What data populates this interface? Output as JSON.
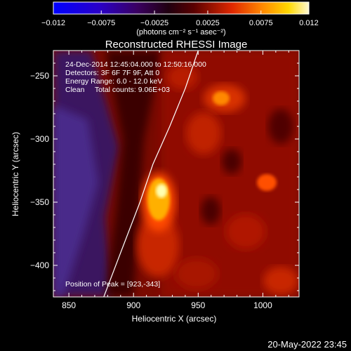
{
  "chart_data": {
    "type": "heatmap",
    "title": "Reconstructed RHESSI Image",
    "xlabel": "Heliocentric X (arcsec)",
    "ylabel": "Heliocentric Y (arcsec)",
    "xlim": [
      838,
      1028
    ],
    "ylim": [
      -425,
      -230
    ],
    "x_ticks": [
      850,
      900,
      950,
      1000
    ],
    "y_ticks": [
      -250,
      -300,
      -350,
      -400
    ],
    "colorbar": {
      "range": [
        -0.012,
        0.012
      ],
      "ticks": [
        "-0.012",
        "-0.0075",
        "-0.0025",
        "0.0025",
        "0.0075",
        "0.012"
      ],
      "label": "(photons cm⁻² s⁻¹ asec⁻²)"
    },
    "annotations": [
      "24-Dec-2014 12:45:04.000 to 12:50:16.000",
      "Detectors: 3F 6F 7F 9F, Att 0",
      "Energy Range: 6.0 - 12.0 keV",
      "Clean     Total counts: 9.06E+03"
    ],
    "peak_label": "Position of Peak = [923,-343]",
    "peak": {
      "x": 923,
      "y": -343
    },
    "limb_curve": [
      [
        877,
        -425
      ],
      [
        890,
        -390
      ],
      [
        905,
        -350
      ],
      [
        915,
        -320
      ],
      [
        928,
        -290
      ],
      [
        940,
        -260
      ],
      [
        950,
        -230
      ]
    ]
  },
  "footer": {
    "date": "20-May-2022 23:45"
  }
}
